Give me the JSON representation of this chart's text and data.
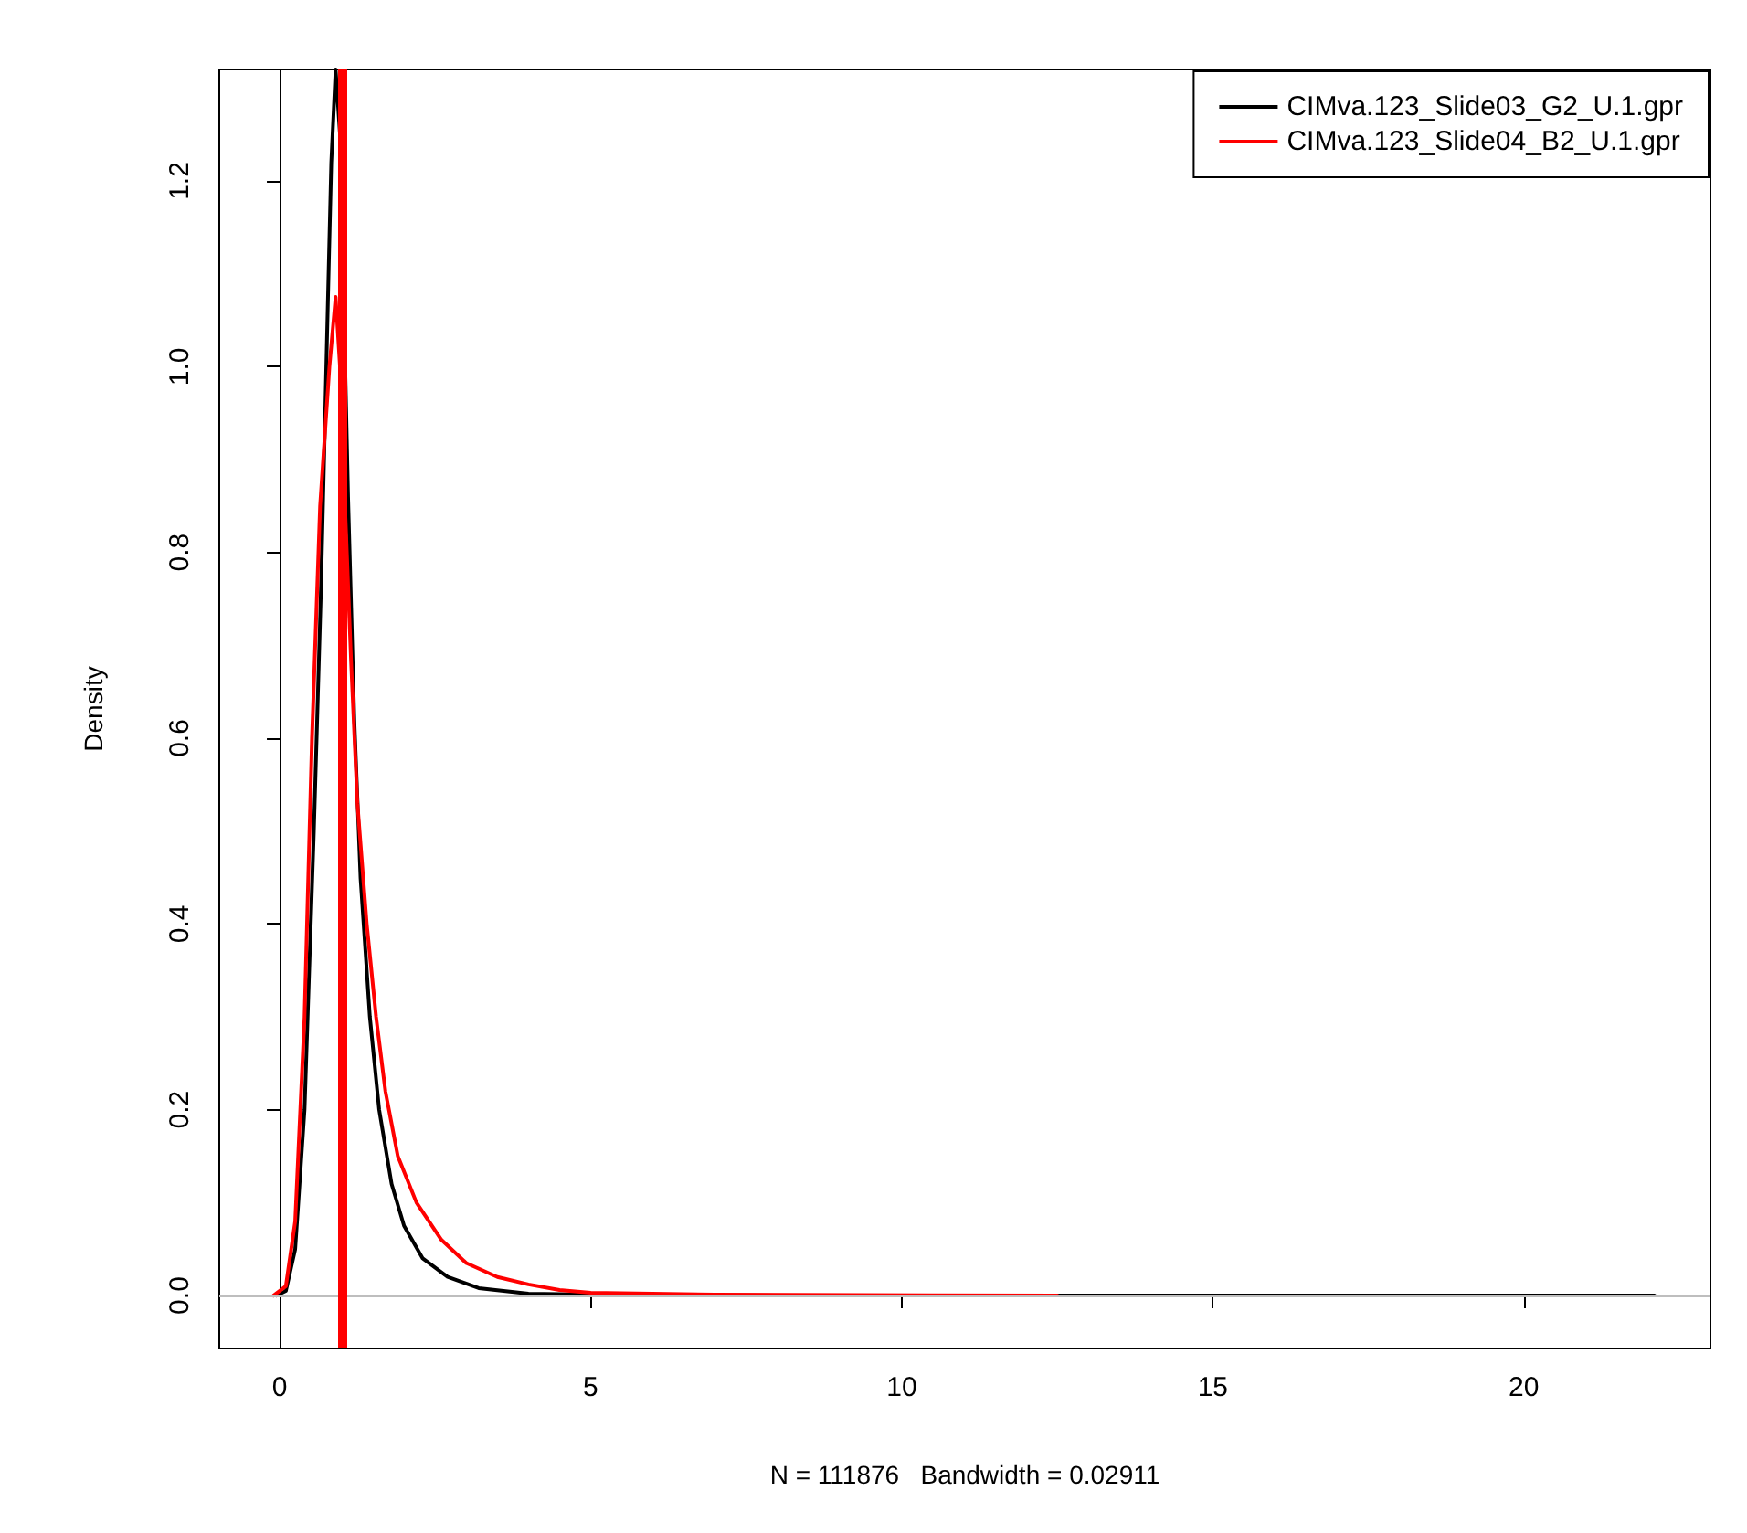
{
  "chart_data": {
    "type": "line",
    "xlabel": "N = 111876   Bandwidth = 0.02911",
    "ylabel": "Density",
    "xlim": [
      -0.97,
      23
    ],
    "xticks": [
      0,
      5,
      10,
      15,
      20
    ],
    "ylim": [
      -0.057,
      1.32
    ],
    "yticks": [
      {
        "value": 0,
        "label": "0.0"
      },
      {
        "value": 0.2,
        "label": "0.2"
      },
      {
        "value": 0.4,
        "label": "0.4"
      },
      {
        "value": 0.6,
        "label": "0.6"
      },
      {
        "value": 0.8,
        "label": "0.8"
      },
      {
        "value": 1.0,
        "label": "1.0"
      },
      {
        "value": 1.2,
        "label": "1.2"
      }
    ],
    "grid": false,
    "legend": "top right",
    "marker": "none",
    "line_style": "solid",
    "ref_lines": [
      {
        "axis": "y",
        "value": 0,
        "label": null,
        "color": "#bebebe"
      },
      {
        "axis": "x",
        "value": 1,
        "label": null,
        "color": "#ff0000"
      }
    ],
    "series": [
      {
        "name": "CIMva.123_Slide03_G2_U.1.gpr",
        "color": "#000000",
        "x": [
          -0.05,
          0.1,
          0.25,
          0.4,
          0.55,
          0.66,
          0.75,
          0.83,
          0.9,
          0.97,
          1.1,
          1.15,
          1.2,
          1.3,
          1.45,
          1.6,
          1.8,
          2.0,
          2.3,
          2.7,
          3.2,
          4,
          5,
          8,
          22.1
        ],
        "values": [
          0,
          0.005,
          0.05,
          0.2,
          0.5,
          0.75,
          1.0,
          1.22,
          1.32,
          1.25,
          0.86,
          0.74,
          0.62,
          0.45,
          0.3,
          0.2,
          0.12,
          0.075,
          0.04,
          0.02,
          0.008,
          0.002,
          0.001,
          0,
          0
        ]
      },
      {
        "name": "CIMva.123_Slide04_B2_U.1.gpr",
        "color": "#ff0000",
        "x": [
          -0.1,
          0.1,
          0.25,
          0.4,
          0.52,
          0.65,
          0.8,
          0.9,
          0.97,
          1.05,
          1.15,
          1.25,
          1.4,
          1.55,
          1.7,
          1.9,
          2.2,
          2.6,
          3,
          3.5,
          4,
          4.5,
          5,
          7,
          12.5
        ],
        "values": [
          0,
          0.01,
          0.08,
          0.3,
          0.6,
          0.85,
          1.0,
          1.075,
          1.0,
          0.85,
          0.68,
          0.53,
          0.4,
          0.3,
          0.22,
          0.15,
          0.1,
          0.06,
          0.035,
          0.02,
          0.012,
          0.006,
          0.003,
          0.001,
          0
        ]
      }
    ]
  }
}
